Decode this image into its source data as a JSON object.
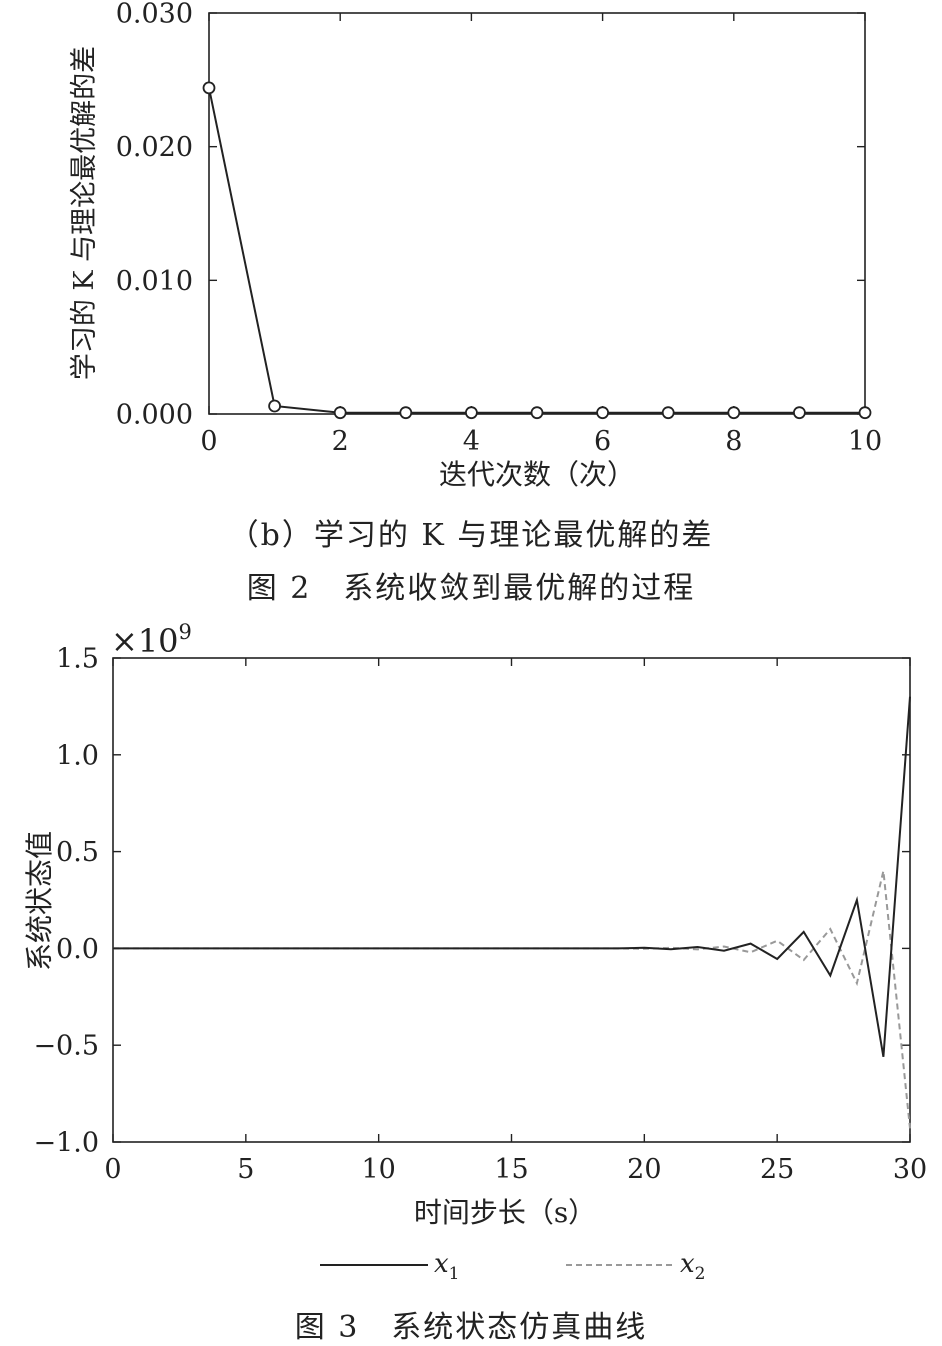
{
  "figure_top": {
    "subcaption": "（b）学习的 K 与理论最优解的差",
    "caption": "图 2　系统收敛到最优解的过程"
  },
  "figure_bottom": {
    "caption": "图 3　系统状态仿真曲线"
  },
  "chart_data": [
    {
      "type": "line",
      "markers": "circle",
      "title": "",
      "xlabel": "迭代次数（次）",
      "ylabel": "学习的 K 与理论最优解的差",
      "xlim": [
        0,
        10
      ],
      "ylim": [
        0,
        0.03
      ],
      "xticks": [
        0,
        2,
        4,
        6,
        8,
        10
      ],
      "xtick_labels": [
        "0",
        "2",
        "4",
        "6",
        "8",
        "10"
      ],
      "yticks": [
        0,
        0.01,
        0.02,
        0.03
      ],
      "ytick_labels": [
        "0.000",
        "0.010",
        "0.020",
        "0.030"
      ],
      "grid": false,
      "series": [
        {
          "x": [
            0,
            1,
            2,
            3,
            4,
            5,
            6,
            7,
            8,
            9,
            10
          ],
          "y": [
            0.0244,
            0.0006,
            0.0001,
            0.0001,
            0.0001,
            0.0001,
            0.0001,
            0.0001,
            0.0001,
            0.0001,
            0.0001
          ],
          "color": "#222222"
        }
      ]
    },
    {
      "type": "line",
      "title": "",
      "xlabel": "时间步长（s）",
      "ylabel": "系统状态值",
      "multiplier": "×10",
      "multiplier_exp": "9",
      "xlim": [
        0,
        30
      ],
      "ylim": [
        -1.0,
        1.5
      ],
      "xticks": [
        0,
        5,
        10,
        15,
        20,
        25,
        30
      ],
      "xtick_labels": [
        "0",
        "5",
        "10",
        "15",
        "20",
        "25",
        "30"
      ],
      "yticks": [
        -1.0,
        -0.5,
        0.0,
        0.5,
        1.0,
        1.5
      ],
      "ytick_labels": [
        "−1.0",
        "−0.5",
        "0.0",
        "0.5",
        "1.0",
        "1.5"
      ],
      "grid": false,
      "legend_position": "bottom",
      "series": [
        {
          "name": "x",
          "name_sub": "1",
          "color": "#222222",
          "dash": "solid",
          "x": [
            0,
            1,
            2,
            3,
            4,
            5,
            6,
            7,
            8,
            9,
            10,
            11,
            12,
            13,
            14,
            15,
            16,
            17,
            18,
            19,
            20,
            21,
            22,
            23,
            24,
            25,
            26,
            27,
            28,
            29,
            30
          ],
          "y": [
            0,
            0,
            0,
            0,
            0,
            0,
            0,
            0,
            0,
            0,
            0,
            0,
            0,
            0,
            0,
            0,
            0,
            0,
            0,
            0,
            0.003,
            -0.004,
            0.007,
            -0.012,
            0.025,
            -0.055,
            0.085,
            -0.14,
            0.25,
            -0.56,
            1.3
          ]
        },
        {
          "name": "x",
          "name_sub": "2",
          "color": "#999999",
          "dash": "dashed",
          "x": [
            0,
            1,
            2,
            3,
            4,
            5,
            6,
            7,
            8,
            9,
            10,
            11,
            12,
            13,
            14,
            15,
            16,
            17,
            18,
            19,
            20,
            21,
            22,
            23,
            24,
            25,
            26,
            27,
            28,
            29,
            30
          ],
          "y": [
            0,
            0,
            0,
            0,
            0,
            0,
            0,
            0,
            0,
            0,
            0,
            0,
            0,
            0,
            0,
            0,
            0,
            0,
            0,
            0,
            -0.002,
            0.003,
            -0.005,
            0.01,
            -0.02,
            0.04,
            -0.06,
            0.1,
            -0.18,
            0.4,
            -0.93
          ]
        }
      ]
    }
  ]
}
